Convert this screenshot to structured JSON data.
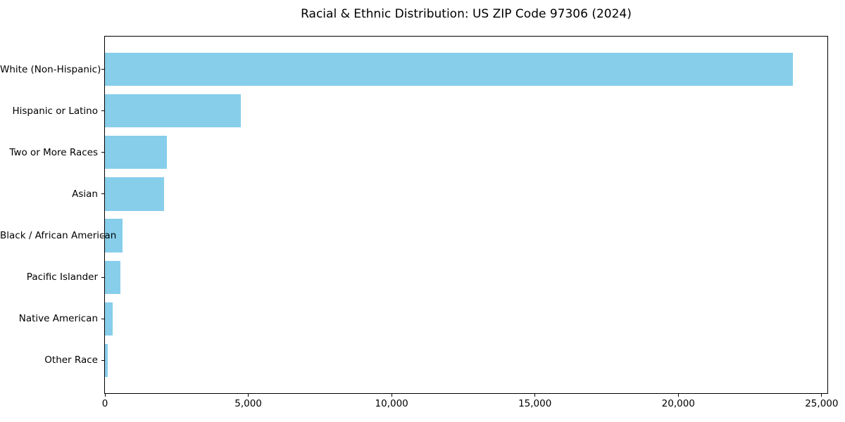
{
  "chart_data": {
    "type": "bar",
    "orientation": "horizontal",
    "title": "Racial & Ethnic Distribution: US ZIP Code 97306 (2024)",
    "categories": [
      "White (Non-Hispanic)",
      "Hispanic or Latino",
      "Two or More Races",
      "Asian",
      "Black / African American",
      "Pacific Islander",
      "Native American",
      "Other Race"
    ],
    "values": [
      24000,
      4750,
      2150,
      2060,
      620,
      550,
      280,
      110
    ],
    "bar_color": "#87CEEB",
    "text_color": "#000000",
    "xlabel": "",
    "ylabel": "",
    "xlim": [
      0,
      25200
    ],
    "x_ticks": [
      0,
      5000,
      10000,
      15000,
      20000,
      25000
    ],
    "x_tick_labels": [
      "0",
      "5,000",
      "10,000",
      "15,000",
      "20,000",
      "25,000"
    ],
    "grid": false,
    "legend_position": "none"
  }
}
